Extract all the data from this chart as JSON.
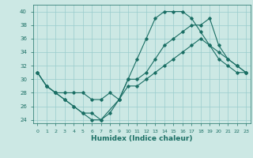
{
  "title": "",
  "xlabel": "Humidex (Indice chaleur)",
  "ylabel": "",
  "background_color": "#cce8e4",
  "line_color": "#1a6e64",
  "grid_color": "#99cccc",
  "xlim": [
    -0.5,
    23.5
  ],
  "ylim": [
    23.5,
    41
  ],
  "yticks": [
    24,
    26,
    28,
    30,
    32,
    34,
    36,
    38,
    40
  ],
  "xticks": [
    0,
    1,
    2,
    3,
    4,
    5,
    6,
    7,
    8,
    9,
    10,
    11,
    12,
    13,
    14,
    15,
    16,
    17,
    18,
    19,
    20,
    21,
    22,
    23
  ],
  "line1_x": [
    0,
    1,
    2,
    3,
    4,
    5,
    6,
    7,
    8,
    9,
    10,
    11,
    12,
    13,
    14,
    15,
    16,
    17,
    18,
    19,
    20,
    21,
    22,
    23
  ],
  "line1_y": [
    31,
    29,
    28,
    27,
    26,
    25,
    24,
    24,
    25,
    27,
    30,
    33,
    36,
    39,
    40,
    40,
    40,
    39,
    37,
    35,
    33,
    32,
    31,
    31
  ],
  "line2_x": [
    0,
    1,
    2,
    3,
    4,
    5,
    6,
    7,
    8,
    9,
    10,
    11,
    12,
    13,
    14,
    15,
    16,
    17,
    18,
    19,
    20,
    21,
    22,
    23
  ],
  "line2_y": [
    31,
    29,
    28,
    28,
    28,
    28,
    27,
    27,
    28,
    27,
    29,
    29,
    30,
    31,
    32,
    33,
    34,
    35,
    36,
    35,
    34,
    33,
    32,
    31
  ],
  "line3_x": [
    0,
    1,
    2,
    3,
    4,
    5,
    6,
    7,
    9,
    10,
    11,
    12,
    13,
    14,
    15,
    16,
    17,
    18,
    19,
    20,
    21,
    22,
    23
  ],
  "line3_y": [
    31,
    29,
    28,
    27,
    26,
    25,
    25,
    24,
    27,
    30,
    30,
    31,
    33,
    35,
    36,
    37,
    38,
    38,
    39,
    35,
    33,
    32,
    31
  ]
}
